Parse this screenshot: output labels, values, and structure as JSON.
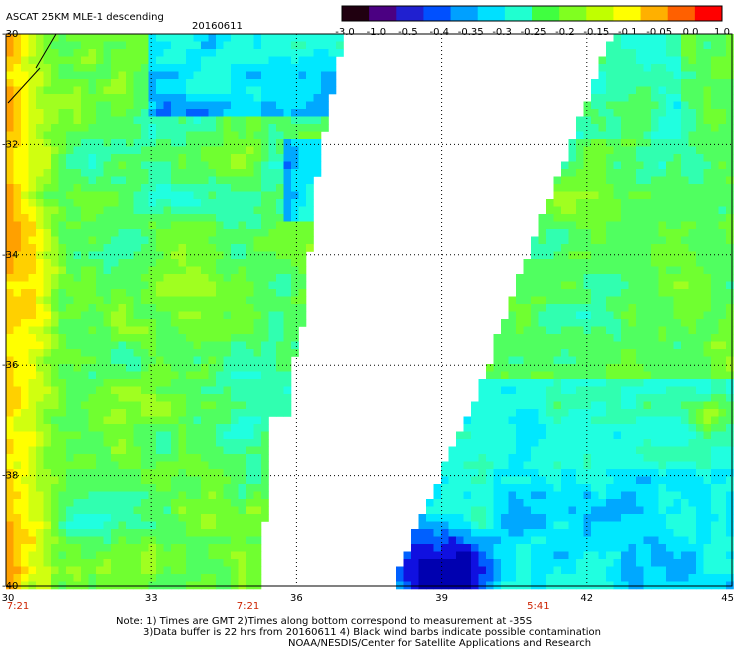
{
  "header": {
    "title": "ASCAT 25KM MLE-1 descending",
    "date": "20160611"
  },
  "colorbar": {
    "labels": [
      "-3.0",
      "-1.0",
      "-0.5",
      "-0.4",
      "-0.35",
      "-0.3",
      "-0.25",
      "-0.2",
      "-0.15",
      "-0.1",
      "-0.05",
      "0.0",
      "1.0"
    ],
    "colors": [
      "#200010",
      "#4b0082",
      "#2020d0",
      "#0050ff",
      "#00a0ff",
      "#00e0ff",
      "#20ffd0",
      "#40ff40",
      "#80ff20",
      "#c0ff00",
      "#ffff00",
      "#ffb000",
      "#ff6000",
      "#ff0000"
    ]
  },
  "chart_data": {
    "type": "heatmap",
    "title": "ASCAT 25KM MLE-1 descending",
    "subtitle": "20160611",
    "x_ticks": [
      "30",
      "33",
      "36",
      "39",
      "42",
      "45"
    ],
    "y_ticks": [
      "-30",
      "-32",
      "-34",
      "-36",
      "-38",
      "-40"
    ],
    "xlim": [
      30,
      45
    ],
    "ylim": [
      -40,
      -30
    ],
    "time_labels": [
      {
        "x": 30,
        "label": "7:21"
      },
      {
        "x": 35,
        "label": "7:21"
      },
      {
        "x": 41,
        "label": "5:41"
      }
    ],
    "grid": true
  },
  "notes": {
    "line1": "Note: 1) Times are GMT 2)Times along bottom correspond to measurement at -35S",
    "line2": "3)Data buffer is 22 hrs from 20160611 4) Black wind barbs indicate possible contamination",
    "line3": "NOAA/NESDIS/Center for Satellite Applications and Research"
  }
}
